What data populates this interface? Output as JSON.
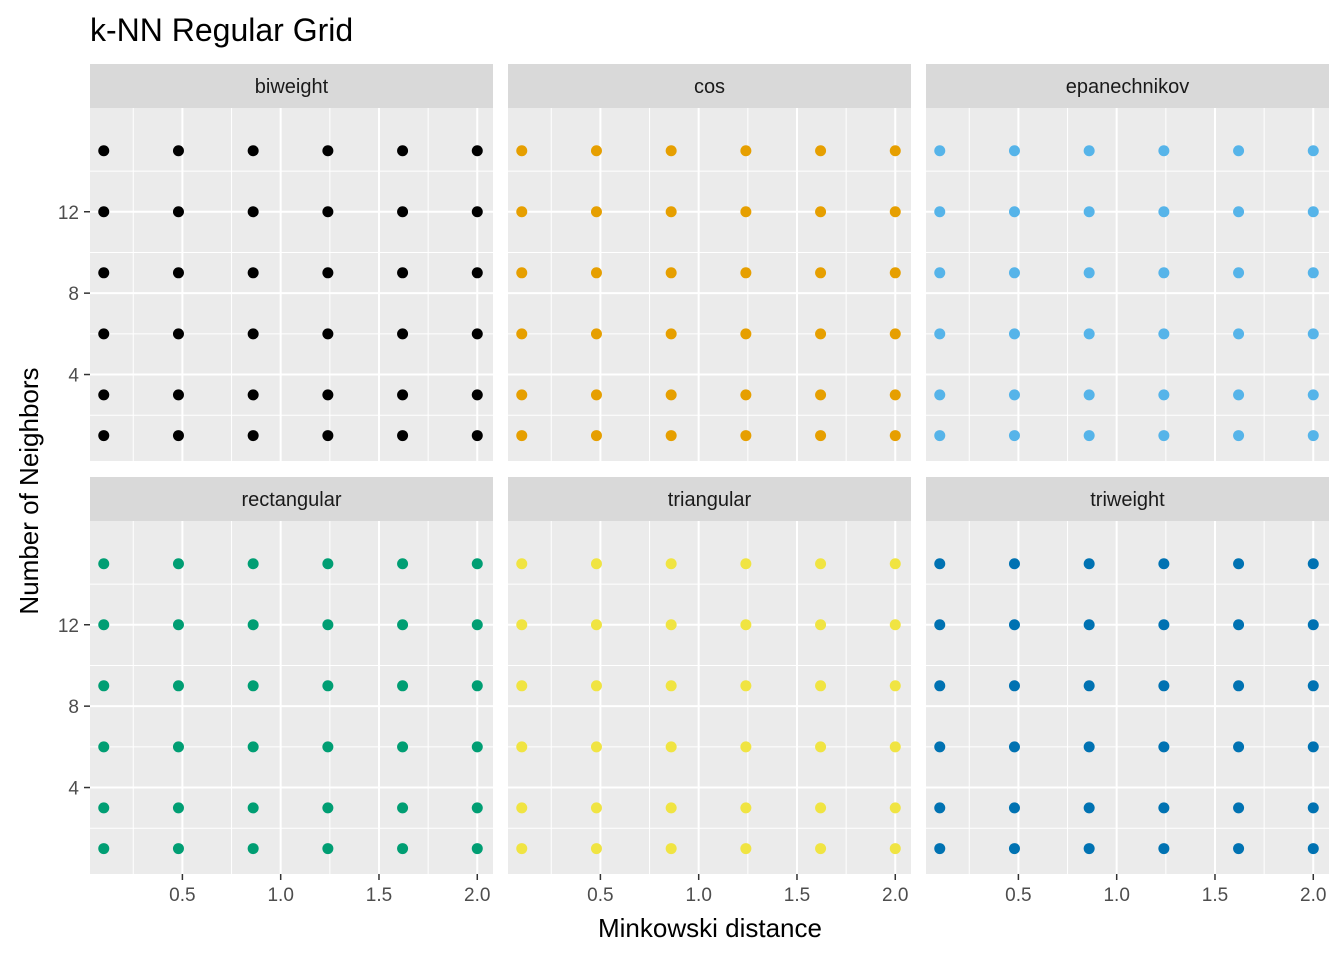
{
  "chart_data": {
    "type": "scatter",
    "title": "k-NN Regular Grid",
    "xlabel": "Minkowski distance",
    "ylabel": "Number of Neighbors",
    "xlim": [
      0.03,
      2.08
    ],
    "ylim": [
      -0.25,
      17.1
    ],
    "x_ticks": [
      0.5,
      1.0,
      1.5,
      2.0
    ],
    "x_tick_labels": [
      "0.5",
      "1.0",
      "1.5",
      "2.0"
    ],
    "y_ticks": [
      4,
      8,
      12
    ],
    "y_tick_labels": [
      "4",
      "8",
      "12"
    ],
    "grid": true,
    "facet_layout": {
      "rows": 2,
      "cols": 3
    },
    "x_values": [
      0.1,
      0.48,
      0.86,
      1.24,
      1.62,
      2.0
    ],
    "y_values": [
      1,
      3,
      6,
      9,
      12,
      15
    ],
    "facets": [
      {
        "name": "biweight",
        "color": "#000000"
      },
      {
        "name": "cos",
        "color": "#E69F00"
      },
      {
        "name": "epanechnikov",
        "color": "#56B4E9"
      },
      {
        "name": "rectangular",
        "color": "#009E73"
      },
      {
        "name": "triangular",
        "color": "#F0E442"
      },
      {
        "name": "triweight",
        "color": "#0072B2"
      }
    ]
  },
  "style": {
    "panel_bg": "#EBEBEB",
    "strip_bg": "#D9D9D9",
    "grid_color": "#FFFFFF"
  }
}
